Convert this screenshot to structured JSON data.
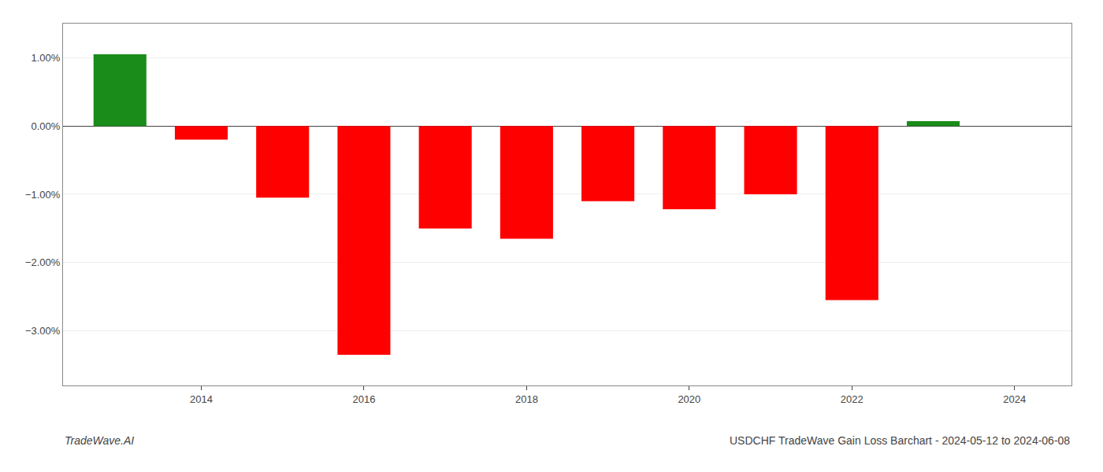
{
  "chart_data": {
    "type": "bar",
    "title": "USDCHF TradeWave Gain Loss Barchart - 2024-05-12 to 2024-06-08",
    "annotations": [
      "TradeWave.AI"
    ],
    "x": [
      2013,
      2014,
      2015,
      2016,
      2017,
      2018,
      2019,
      2020,
      2021,
      2022,
      2023
    ],
    "values": [
      1.05,
      -0.2,
      -1.05,
      -3.35,
      -1.5,
      -1.65,
      -1.1,
      -1.22,
      -1.0,
      -2.55,
      0.07
    ],
    "colors": [
      "#1a8c1a",
      "#ff0000",
      "#ff0000",
      "#ff0000",
      "#ff0000",
      "#ff0000",
      "#ff0000",
      "#ff0000",
      "#ff0000",
      "#ff0000",
      "#1a8c1a"
    ],
    "xlim": [
      2012.3,
      2024.7
    ],
    "xticks": [
      2014,
      2016,
      2018,
      2020,
      2022,
      2024
    ],
    "ylim": [
      -3.8,
      1.5
    ],
    "yticks": [
      {
        "value": 1.0,
        "label": "1.00%"
      },
      {
        "value": 0.0,
        "label": "0.00%"
      },
      {
        "value": -1.0,
        "label": "−1.00%"
      },
      {
        "value": -2.0,
        "label": "−2.00%"
      },
      {
        "value": -3.0,
        "label": "−3.00%"
      }
    ],
    "grid": true
  }
}
